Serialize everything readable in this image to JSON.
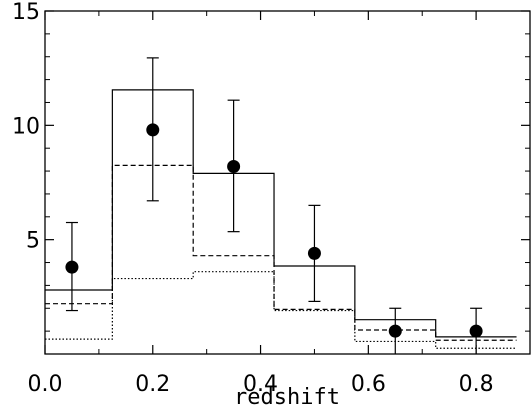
{
  "chart_data": {
    "type": "histogram-with-points",
    "title": "",
    "xlabel": "redshift",
    "ylabel": "",
    "xlim": [
      0.0,
      0.9
    ],
    "ylim": [
      0,
      15
    ],
    "xticks": [
      0.0,
      0.2,
      0.4,
      0.6,
      0.8
    ],
    "xtick_labels": [
      "0.0",
      "0.2",
      "0.4",
      "0.6",
      "0.8"
    ],
    "yticks": [
      5,
      10,
      15
    ],
    "ytick_labels": [
      "5",
      "10",
      "15"
    ],
    "grid": false,
    "legend": "none",
    "bin_edges": [
      0.0,
      0.125,
      0.275,
      0.425,
      0.575,
      0.725,
      0.875
    ],
    "series": [
      {
        "style": "solid",
        "values": [
          2.8,
          11.55,
          7.9,
          3.85,
          1.5,
          0.75
        ]
      },
      {
        "style": "dashed",
        "values": [
          2.2,
          8.25,
          4.3,
          1.95,
          1.05,
          0.6
        ]
      },
      {
        "style": "dotted",
        "values": [
          0.65,
          3.3,
          3.6,
          1.9,
          0.55,
          0.25
        ]
      }
    ],
    "points": [
      {
        "x": 0.05,
        "y": 3.8,
        "yerr_low": 1.9,
        "yerr_high": 5.75
      },
      {
        "x": 0.2,
        "y": 9.8,
        "yerr_low": 6.7,
        "yerr_high": 12.95
      },
      {
        "x": 0.35,
        "y": 8.2,
        "yerr_low": 5.35,
        "yerr_high": 11.1
      },
      {
        "x": 0.5,
        "y": 4.4,
        "yerr_low": 2.3,
        "yerr_high": 6.5
      },
      {
        "x": 0.65,
        "y": 1.0,
        "yerr_low": 0.0,
        "yerr_high": 2.0
      },
      {
        "x": 0.8,
        "y": 1.0,
        "yerr_low": 0.0,
        "yerr_high": 2.0
      }
    ]
  }
}
